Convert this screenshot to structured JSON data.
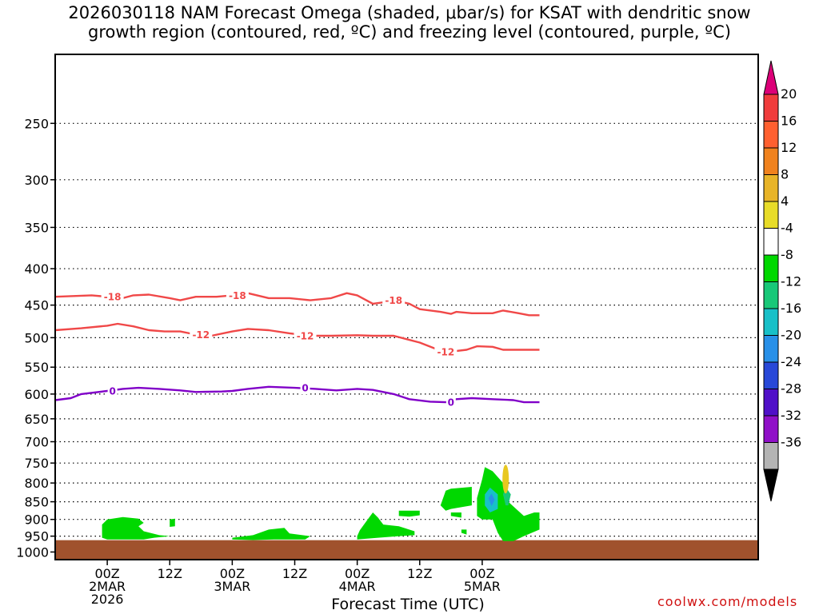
{
  "chart_data": {
    "type": "time-height cross-section",
    "title_line1": "2026030118 NAM Forecast Omega (shaded, μbar/s) for KSAT with dendritic snow",
    "title_line2": "growth region (contoured, red, ºC) and freezing level (contoured, purple, ºC)",
    "xlabel": "Forecast Time (UTC)",
    "watermark": "coolwx.com/models",
    "x_range_hours": [
      -10,
      125
    ],
    "y_range_hpa": [
      200,
      1025
    ],
    "y_ticks": [
      250,
      300,
      350,
      400,
      450,
      500,
      550,
      600,
      650,
      700,
      750,
      800,
      850,
      900,
      950,
      1000
    ],
    "x_ticks": [
      {
        "hour": 0,
        "lines": [
          "00Z",
          "2MAR",
          "2026"
        ]
      },
      {
        "hour": 12,
        "lines": [
          "12Z"
        ]
      },
      {
        "hour": 24,
        "lines": [
          "00Z",
          "3MAR"
        ]
      },
      {
        "hour": 36,
        "lines": [
          "12Z"
        ]
      },
      {
        "hour": 48,
        "lines": [
          "00Z",
          "4MAR"
        ]
      },
      {
        "hour": 60,
        "lines": [
          "12Z"
        ]
      },
      {
        "hour": 72,
        "lines": [
          "00Z",
          "5MAR"
        ]
      }
    ],
    "contours": [
      {
        "name": "-18",
        "color": "#f04848",
        "label": "-18",
        "label_hours": [
          1,
          1,
          48
        ],
        "points": [
          [
            -10,
            438
          ],
          [
            -3,
            436
          ],
          [
            0,
            438
          ],
          [
            3,
            440
          ],
          [
            5,
            436
          ],
          [
            8,
            435
          ],
          [
            12,
            440
          ],
          [
            14,
            443
          ],
          [
            17,
            438
          ],
          [
            21,
            438
          ],
          [
            24,
            436
          ],
          [
            27,
            433
          ],
          [
            31,
            440
          ],
          [
            35,
            440
          ],
          [
            39,
            443
          ],
          [
            43,
            440
          ],
          [
            46,
            433
          ],
          [
            48,
            436
          ],
          [
            51,
            448
          ],
          [
            53,
            446
          ],
          [
            55,
            443
          ],
          [
            58,
            448
          ],
          [
            60,
            456
          ],
          [
            64,
            460
          ],
          [
            66,
            463
          ],
          [
            67,
            460
          ],
          [
            70,
            462
          ],
          [
            74,
            462
          ],
          [
            76,
            458
          ],
          [
            79,
            462
          ],
          [
            81,
            465
          ],
          [
            83,
            465
          ]
        ]
      },
      {
        "name": "-12",
        "color": "#f04848",
        "label": "-12",
        "label_hours": [
          20,
          38,
          63
        ],
        "points": [
          [
            -10,
            488
          ],
          [
            -5,
            485
          ],
          [
            0,
            481
          ],
          [
            2,
            478
          ],
          [
            5,
            482
          ],
          [
            8,
            488
          ],
          [
            11,
            490
          ],
          [
            14,
            490
          ],
          [
            17,
            495
          ],
          [
            20,
            497
          ],
          [
            24,
            490
          ],
          [
            27,
            486
          ],
          [
            31,
            488
          ],
          [
            35,
            493
          ],
          [
            39,
            497
          ],
          [
            43,
            497
          ],
          [
            48,
            496
          ],
          [
            51,
            497
          ],
          [
            55,
            497
          ],
          [
            60,
            508
          ],
          [
            63,
            518
          ],
          [
            66,
            523
          ],
          [
            69,
            520
          ],
          [
            71,
            514
          ],
          [
            74,
            515
          ],
          [
            76,
            520
          ],
          [
            79,
            520
          ],
          [
            81,
            520
          ],
          [
            83,
            520
          ]
        ]
      },
      {
        "name": "0",
        "color": "#8000c8",
        "label": "0",
        "label_hours": [
          1,
          36,
          63
        ],
        "points": [
          [
            -10,
            612
          ],
          [
            -7,
            608
          ],
          [
            -5,
            600
          ],
          [
            0,
            594
          ],
          [
            3,
            590
          ],
          [
            6,
            588
          ],
          [
            10,
            590
          ],
          [
            14,
            593
          ],
          [
            17,
            596
          ],
          [
            22,
            595
          ],
          [
            24,
            594
          ],
          [
            27,
            590
          ],
          [
            31,
            586
          ],
          [
            36,
            588
          ],
          [
            40,
            590
          ],
          [
            44,
            593
          ],
          [
            48,
            590
          ],
          [
            51,
            592
          ],
          [
            55,
            600
          ],
          [
            58,
            610
          ],
          [
            62,
            615
          ],
          [
            65,
            616
          ],
          [
            67,
            610
          ],
          [
            70,
            608
          ],
          [
            74,
            610
          ],
          [
            78,
            612
          ],
          [
            80,
            616
          ],
          [
            83,
            616
          ]
        ]
      }
    ],
    "omega_regions": [
      {
        "level": "-4 to -8",
        "color": "#00d800",
        "name": "omega-ascent-region-1",
        "points": [
          [
            0,
            912
          ],
          [
            1,
            893
          ],
          [
            5,
            900
          ],
          [
            7,
            912
          ],
          [
            4,
            930
          ],
          [
            1,
            940
          ],
          [
            0,
            950
          ],
          [
            0,
            960
          ],
          [
            4,
            962
          ],
          [
            8,
            954
          ],
          [
            7,
            940
          ],
          [
            5,
            945
          ],
          [
            6,
            955
          ],
          [
            3,
            958
          ],
          [
            1,
            960
          ],
          [
            -1,
            958
          ],
          [
            -1,
            942
          ],
          [
            0,
            925
          ]
        ]
      },
      {
        "name": "omega-ascent-region-2",
        "level": "-4 to -8",
        "color": "#00d800",
        "points": [
          [
            -1,
            965
          ],
          [
            10,
            965
          ],
          [
            14,
            962
          ],
          [
            13,
            955
          ],
          [
            5,
            950
          ],
          [
            -1,
            952
          ]
        ]
      }
    ],
    "colorbar": {
      "labels": [
        "20",
        "16",
        "12",
        "8",
        "4",
        "-4",
        "-8",
        "-12",
        "-16",
        "-20",
        "-24",
        "-28",
        "-32",
        "-36"
      ],
      "colors": [
        "#f03c3c",
        "#ff6030",
        "#f0821e",
        "#e8b428",
        "#e8dc28",
        "#ffffff",
        "#00d800",
        "#18c878",
        "#18c0c8",
        "#2890e8",
        "#2848d8",
        "#5010c8",
        "#9010c8",
        "#b4b4b4"
      ],
      "top_color": "#dc0078",
      "bottom_color": "#000000"
    },
    "ground_color": "#a0522d"
  }
}
